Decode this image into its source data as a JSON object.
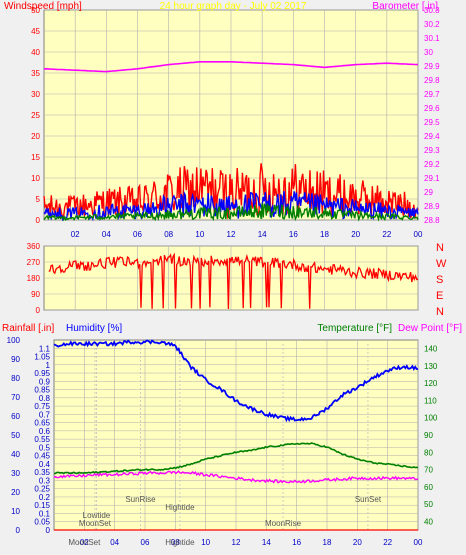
{
  "colors": {
    "bg": "#f0f0f0",
    "plot_bg": "#ffffc0",
    "grid": "#b0b0b0",
    "red": "#ff0000",
    "blue": "#0000ff",
    "green": "#008000",
    "magenta": "#ff00ff",
    "darkblue": "#0000c8",
    "yellow": "#ffff00",
    "gray_text": "#555555"
  },
  "hour_ticks": [
    "02",
    "04",
    "06",
    "08",
    "10",
    "12",
    "14",
    "16",
    "18",
    "20",
    "22",
    "00"
  ],
  "chart_data": [
    {
      "type": "line",
      "title": "24 hour graph day - July 02 2017",
      "ylabel_left": "Windspeed [mph]",
      "ylabel_right": "Barometer [.in]",
      "ylim_left": [
        0,
        50
      ],
      "ylim_right": [
        28.8,
        30.3
      ],
      "left_ticks": [
        "0",
        "5",
        "10",
        "15",
        "20",
        "25",
        "30",
        "35",
        "40",
        "45",
        "50"
      ],
      "right_ticks": [
        "28.8",
        "28.9",
        "29",
        "29.1",
        "29.2",
        "29.3",
        "29.4",
        "29.5",
        "29.6",
        "29.7",
        "29.8",
        "29.9",
        "30",
        "30.1",
        "30.2",
        "30.3"
      ],
      "x": [
        0,
        2,
        4,
        6,
        8,
        10,
        12,
        14,
        16,
        18,
        20,
        22,
        24
      ],
      "series": [
        {
          "key": "gust",
          "axis": "left",
          "values": [
            3,
            3,
            4,
            4,
            6,
            7,
            6,
            7,
            7,
            6,
            5,
            4,
            3
          ]
        },
        {
          "key": "speed",
          "axis": "left",
          "values": [
            1.5,
            1.5,
            2,
            2,
            3,
            3.5,
            3,
            3.5,
            3.5,
            3,
            2.5,
            2,
            1.5
          ]
        },
        {
          "key": "avg",
          "axis": "left",
          "values": [
            0.5,
            0.5,
            0.8,
            0.8,
            1.2,
            1.5,
            1.5,
            2,
            2,
            1.5,
            1,
            0.8,
            0.5
          ]
        },
        {
          "key": "barometer",
          "axis": "right",
          "values": [
            29.88,
            29.87,
            29.86,
            29.88,
            29.91,
            29.93,
            29.93,
            29.92,
            29.91,
            29.89,
            29.91,
            29.92,
            29.91
          ]
        }
      ]
    },
    {
      "type": "line",
      "title": "",
      "ylim": [
        0,
        360
      ],
      "left_ticks": [
        "0",
        "90",
        "180",
        "270",
        "360"
      ],
      "direction_labels": [
        "N",
        "W",
        "S",
        "E",
        "N"
      ],
      "x": [
        0,
        1,
        2,
        3,
        4,
        5,
        6,
        7,
        8,
        9,
        10,
        11,
        12,
        13,
        14,
        15,
        16,
        17,
        18,
        19,
        20,
        21,
        22,
        23,
        24
      ],
      "series": [
        {
          "key": "direction",
          "values": [
            215,
            240,
            250,
            250,
            265,
            270,
            265,
            275,
            285,
            275,
            270,
            280,
            280,
            275,
            270,
            265,
            255,
            240,
            230,
            225,
            210,
            205,
            200,
            190,
            185
          ]
        }
      ]
    },
    {
      "type": "line",
      "title": "",
      "ylabel_left_1": "Rainfall [.in]",
      "ylabel_left_2": "Humidity [%]",
      "ylabel_right_1": "Temperature [°F]",
      "ylabel_right_2": "Dew Point [°F]",
      "ylim_rain": [
        0,
        1.15
      ],
      "ylim_humidity": [
        0,
        100
      ],
      "ylim_temp": [
        35,
        145
      ],
      "rain_ticks": [
        "0",
        "0.05",
        "0.1",
        "0.15",
        "0.2",
        "0.25",
        "0.3",
        "0.35",
        "0.4",
        "0.45",
        "0.5",
        "0.55",
        "0.6",
        "0.65",
        "0.7",
        "0.75",
        "0.8",
        "0.85",
        "0.9",
        "0.95",
        "1",
        "1.05",
        "1.1"
      ],
      "humidity_ticks": [
        "0",
        "10",
        "20",
        "30",
        "40",
        "50",
        "60",
        "70",
        "80",
        "90",
        "100"
      ],
      "temp_ticks": [
        "40",
        "50",
        "60",
        "70",
        "80",
        "90",
        "100",
        "110",
        "120",
        "130",
        "140"
      ],
      "x": [
        0,
        1,
        2,
        3,
        4,
        5,
        6,
        7,
        8,
        9,
        10,
        11,
        12,
        13,
        14,
        15,
        16,
        17,
        18,
        19,
        20,
        21,
        22,
        23,
        24
      ],
      "series": [
        {
          "key": "rain",
          "axis": "rain",
          "values": [
            0,
            0,
            0,
            0,
            0,
            0,
            0,
            0,
            0,
            0,
            0,
            0,
            0,
            0,
            0,
            0,
            0,
            0,
            0,
            0,
            0,
            0,
            0,
            0,
            0
          ]
        },
        {
          "key": "humidity",
          "axis": "humidity",
          "values": [
            97,
            98,
            98,
            98,
            98,
            99,
            99,
            99,
            97,
            86,
            79,
            74,
            68,
            64,
            61,
            59,
            58,
            59,
            64,
            71,
            75,
            80,
            84,
            86,
            85
          ]
        },
        {
          "key": "temperature",
          "axis": "temp",
          "values": [
            68,
            68,
            68,
            68.5,
            69,
            69.5,
            70,
            70,
            71,
            73,
            76,
            78,
            80,
            81,
            83,
            84,
            85,
            85,
            83,
            79,
            76,
            74,
            73,
            72,
            71
          ]
        },
        {
          "key": "dewpoint",
          "axis": "temp",
          "values": [
            66,
            66,
            66.5,
            67,
            67,
            67.5,
            68,
            68,
            68.5,
            68,
            67,
            66,
            65,
            64,
            63.5,
            63,
            63,
            63.5,
            64,
            64.5,
            65,
            65,
            65,
            65,
            64.5
          ]
        }
      ],
      "annotations": [
        {
          "text": "Lowtide",
          "hour": 2.8,
          "row": 3
        },
        {
          "text": "SunRise",
          "hour": 5.7,
          "row": 1
        },
        {
          "text": "MoonSet",
          "hour": 2.7,
          "row": 4
        },
        {
          "text": "Hightide",
          "hour": 8.3,
          "row": 2
        },
        {
          "text": "MoonRise",
          "hour": 15.1,
          "row": 4
        },
        {
          "text": "SunSet",
          "hour": 20.7,
          "row": 1
        }
      ],
      "bottom_labels": [
        "MoonSet",
        "Hightide"
      ]
    }
  ]
}
